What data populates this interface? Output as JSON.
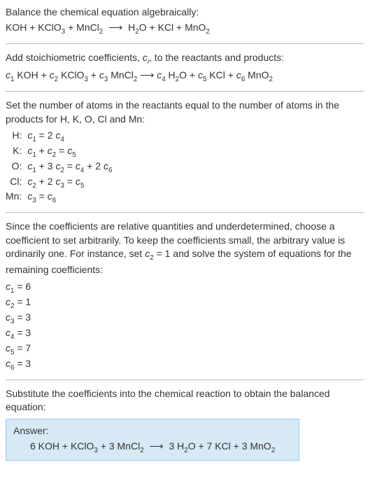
{
  "intro": {
    "line1": "Balance the chemical equation algebraically:",
    "reaction_lhs": "KOH + KClO",
    "reaction_lhs2": " + MnCl",
    "arrow": "⟶",
    "reaction_rhs": "H",
    "reaction_rhs2": "O + KCl + MnO"
  },
  "stoich": {
    "text": "Add stoichiometric coefficients, ",
    "ci": "c",
    "ci_sub": "i",
    "text2": ", to the reactants and products:",
    "eq_c1": "c",
    "eq_1": "1",
    "sp1": " KOH + ",
    "eq_c2": "c",
    "eq_2": "2",
    "sp2": " KClO",
    "sp2b": " + ",
    "eq_c3": "c",
    "eq_3": "3",
    "sp3": " MnCl",
    "sp3b": "  ⟶  ",
    "eq_c4": "c",
    "eq_4": "4",
    "sp4": " H",
    "sp4b": "O + ",
    "eq_c5": "c",
    "eq_5": "5",
    "sp5": " KCl + ",
    "eq_c6": "c",
    "eq_6": "6",
    "sp6": " MnO"
  },
  "atoms": {
    "text": "Set the number of atoms in the reactants equal to the number of atoms in the products for H, K, O, Cl and Mn:",
    "rows": [
      {
        "el": "H:",
        "c1": "c",
        "s1": "1",
        "mid": " = 2 ",
        "c2": "c",
        "s2": "4",
        "tail": ""
      },
      {
        "el": "K:",
        "c1": "c",
        "s1": "1",
        "mid": " + ",
        "c2": "c",
        "s2": "2",
        "mid2": " = ",
        "c3": "c",
        "s3": "5"
      },
      {
        "el": "O:",
        "c1": "c",
        "s1": "1",
        "mid": " + 3 ",
        "c2": "c",
        "s2": "2",
        "mid2": " = ",
        "c3": "c",
        "s3": "4",
        "mid3": " + 2 ",
        "c4": "c",
        "s4": "6"
      },
      {
        "el": "Cl:",
        "c1": "c",
        "s1": "2",
        "mid": " + 2 ",
        "c2": "c",
        "s2": "3",
        "mid2": " = ",
        "c3": "c",
        "s3": "5"
      },
      {
        "el": "Mn:",
        "c1": "c",
        "s1": "3",
        "mid": " = ",
        "c2": "c",
        "s2": "6"
      }
    ]
  },
  "relative": {
    "text1": "Since the coefficients are relative quantities and underdetermined, choose a coefficient to set arbitrarily. To keep the coefficients small, the arbitrary value is ordinarily one. For instance, set ",
    "cset": "c",
    "cset_sub": "2",
    "text2": " = 1 and solve the system of equations for the remaining coefficients:",
    "coeffs": [
      {
        "c": "c",
        "s": "1",
        "eq": " = 6"
      },
      {
        "c": "c",
        "s": "2",
        "eq": " = 1"
      },
      {
        "c": "c",
        "s": "3",
        "eq": " = 3"
      },
      {
        "c": "c",
        "s": "4",
        "eq": " = 3"
      },
      {
        "c": "c",
        "s": "5",
        "eq": " = 7"
      },
      {
        "c": "c",
        "s": "6",
        "eq": " = 3"
      }
    ]
  },
  "subst": {
    "text": "Substitute the coefficients into the chemical reaction to obtain the balanced equation:"
  },
  "answer": {
    "label": "Answer:",
    "lhs1": "6 KOH + KClO",
    "lhs2": " + 3 MnCl",
    "arrow": "⟶",
    "rhs1": "3 H",
    "rhs2": "O + 7 KCl + 3 MnO"
  },
  "subscripts": {
    "three": "3",
    "two": "2"
  }
}
